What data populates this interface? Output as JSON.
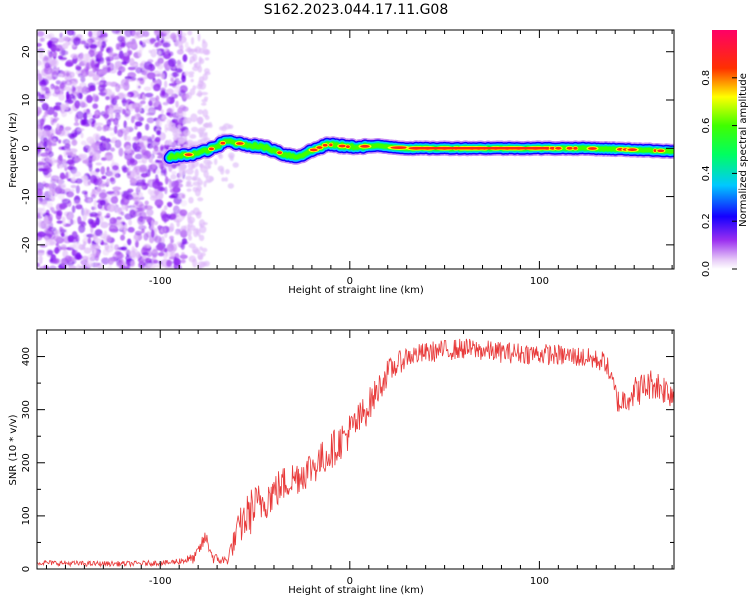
{
  "title": "S162.2023.044.17.11.G08",
  "colors": {
    "snr_line": "#e83a3a",
    "axis": "#000000"
  },
  "chart_data": [
    {
      "type": "heatmap",
      "name": "spectrogram",
      "xlabel": "Height of straight line (km)",
      "ylabel": "Frequency (Hz)",
      "xlim": [
        -165,
        171
      ],
      "ylim": [
        -25,
        24.5
      ],
      "xticks": [
        -100,
        0,
        100
      ],
      "yticks": [
        -20,
        -10,
        0,
        10,
        20
      ],
      "ridge": {
        "x": [
          -95,
          -88,
          -80,
          -72,
          -65,
          -58,
          -50,
          -43,
          -35,
          -28,
          -20,
          -12,
          0,
          15,
          30,
          50,
          75,
          100,
          125,
          150,
          170
        ],
        "freq": [
          -1.8,
          -1.5,
          -1.0,
          0.0,
          1.5,
          1.0,
          0.5,
          0.0,
          -1.2,
          -1.8,
          -0.5,
          0.8,
          0.3,
          0.5,
          0.0,
          0.0,
          0.0,
          0.0,
          0.0,
          -0.3,
          -0.6
        ]
      },
      "noise_region_x": [
        -165,
        -90
      ],
      "colorbar": {
        "label": "Normalized spectral amplitude",
        "range": [
          0,
          1
        ],
        "ticks": [
          "0.0",
          "0.2",
          "0.4",
          "0.6",
          "0.8"
        ]
      }
    },
    {
      "type": "line",
      "name": "snr",
      "xlabel": "Height of straight line (km)",
      "ylabel": "SNR (10 * v/v)",
      "xlim": [
        -165,
        171
      ],
      "ylim": [
        0,
        450
      ],
      "xticks": [
        -100,
        0,
        100
      ],
      "yticks": [
        0,
        100,
        200,
        300,
        400
      ],
      "series": [
        {
          "name": "SNR",
          "x": [
            -165,
            -140,
            -115,
            -95,
            -82,
            -76,
            -72,
            -65,
            -58,
            -52,
            -45,
            -35,
            -25,
            -15,
            -5,
            5,
            12,
            20,
            30,
            45,
            60,
            80,
            100,
            120,
            135,
            142,
            148,
            160,
            171
          ],
          "y": [
            12,
            10,
            10,
            12,
            20,
            60,
            20,
            15,
            80,
            110,
            130,
            160,
            180,
            205,
            240,
            280,
            320,
            370,
            400,
            410,
            415,
            408,
            405,
            400,
            390,
            310,
            330,
            350,
            330
          ],
          "noise_amplitude": [
            5,
            5,
            5,
            5,
            10,
            15,
            10,
            10,
            35,
            45,
            40,
            35,
            35,
            35,
            35,
            35,
            30,
            25,
            20,
            20,
            20,
            20,
            20,
            20,
            20,
            25,
            30,
            30,
            30
          ]
        }
      ]
    }
  ]
}
